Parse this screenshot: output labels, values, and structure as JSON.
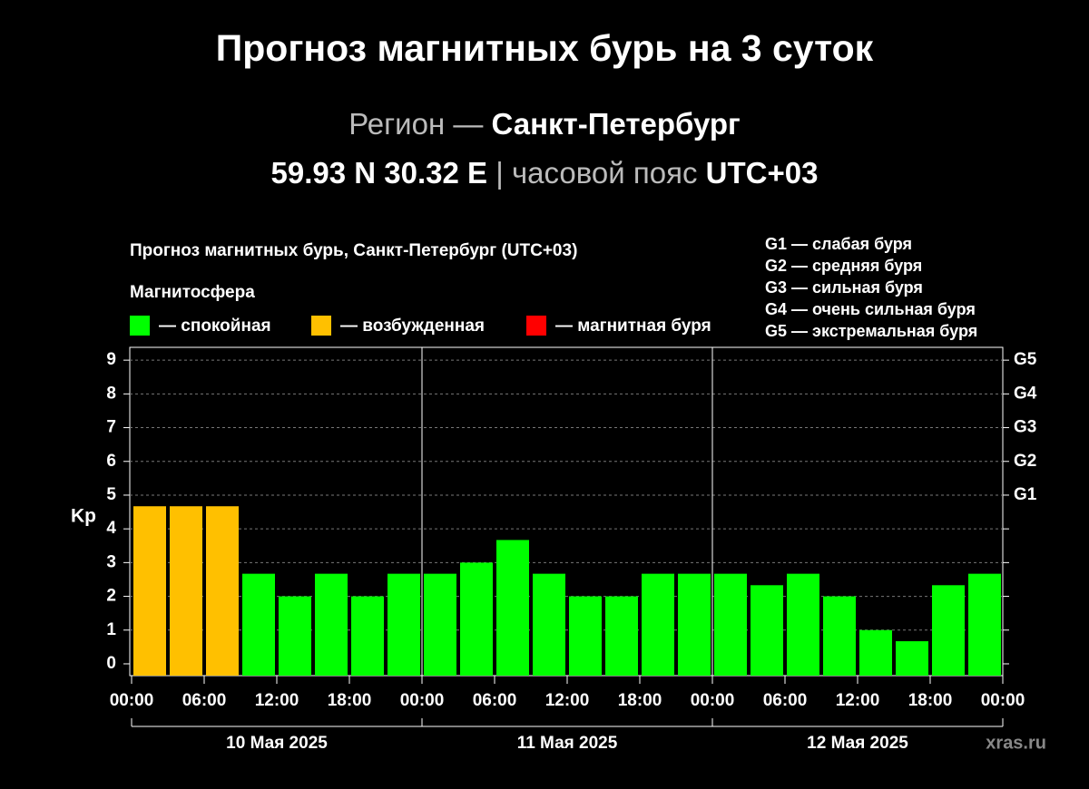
{
  "header": {
    "title": "Прогноз магнитных бурь на 3 суток",
    "region_label": "Регион —",
    "region": "Санкт-Петербург",
    "coords": "59.93 N 30.32 E",
    "tz_label": "| часовой пояс",
    "tz": "UTC+03"
  },
  "chart_data": {
    "type": "bar",
    "title": "Прогноз магнитных бурь, Санкт-Петербург (UTC+03)",
    "legend_title": "Магнитосфера",
    "legend": [
      {
        "name": "— спокойная",
        "color": "#00ff00"
      },
      {
        "name": "— возбужденная",
        "color": "#ffc000"
      },
      {
        "name": "— магнитная буря",
        "color": "#ff0000"
      }
    ],
    "g_legend": [
      "G1 — слабая буря",
      "G2 — средняя буря",
      "G3 — сильная буря",
      "G4 — очень сильная буря",
      "G5 — экстремальная буря"
    ],
    "y_label": "Kp",
    "x": [
      0,
      3,
      6,
      9,
      12,
      15,
      18,
      21,
      24,
      27,
      30,
      33,
      36,
      39,
      42,
      45,
      48,
      51,
      54,
      57,
      60,
      63,
      66,
      69
    ],
    "values": [
      4.67,
      4.67,
      4.67,
      2.67,
      2,
      2.67,
      2,
      2.67,
      2.67,
      3,
      3.67,
      2.67,
      2,
      2,
      2.67,
      2.67,
      2.67,
      2.33,
      2.67,
      2,
      1,
      0.67,
      2.33,
      2.67
    ],
    "colors": [
      "#ffc000",
      "#ffc000",
      "#ffc000",
      "#00ff00",
      "#00ff00",
      "#00ff00",
      "#00ff00",
      "#00ff00",
      "#00ff00",
      "#00ff00",
      "#00ff00",
      "#00ff00",
      "#00ff00",
      "#00ff00",
      "#00ff00",
      "#00ff00",
      "#00ff00",
      "#00ff00",
      "#00ff00",
      "#00ff00",
      "#00ff00",
      "#00ff00",
      "#00ff00",
      "#00ff00"
    ],
    "bar_width": 3,
    "xlim": [
      0,
      72
    ],
    "xticks": [
      {
        "value": 0,
        "label": "00:00"
      },
      {
        "value": 6,
        "label": "06:00"
      },
      {
        "value": 12,
        "label": "12:00"
      },
      {
        "value": 18,
        "label": "18:00"
      },
      {
        "value": 24,
        "label": "00:00"
      },
      {
        "value": 30,
        "label": "06:00"
      },
      {
        "value": 36,
        "label": "12:00"
      },
      {
        "value": 42,
        "label": "18:00"
      },
      {
        "value": 48,
        "label": "00:00"
      },
      {
        "value": 54,
        "label": "06:00"
      },
      {
        "value": 60,
        "label": "12:00"
      },
      {
        "value": 66,
        "label": "18:00"
      },
      {
        "value": 72,
        "label": "00:00"
      }
    ],
    "days": [
      "10 Мая 2025",
      "11 Мая 2025",
      "12 Мая 2025"
    ],
    "ylim": [
      -0.35,
      9.38
    ],
    "yticks": [
      0,
      1,
      2,
      3,
      4,
      5,
      6,
      7,
      8,
      9
    ],
    "y2lim": [
      -0.35,
      9.38
    ],
    "y2ticks": [
      {
        "value": 5,
        "label": "G1"
      },
      {
        "value": 6,
        "label": "G2"
      },
      {
        "value": 7,
        "label": "G3"
      },
      {
        "value": 8,
        "label": "G4"
      },
      {
        "value": 9,
        "label": "G5"
      }
    ],
    "grid": true,
    "watermark": "xras.ru"
  }
}
